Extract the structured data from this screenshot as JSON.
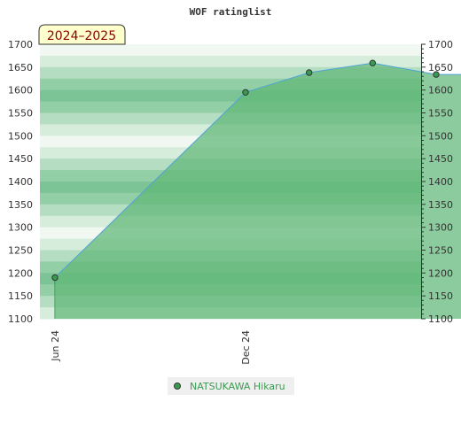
{
  "chart_data": {
    "type": "area",
    "title": "WOF ratinglist",
    "season_label": "2024–2025",
    "ylim": [
      1100,
      1700
    ],
    "y_ticks": [
      "1100",
      "1150",
      "1200",
      "1250",
      "1300",
      "1350",
      "1400",
      "1450",
      "1500",
      "1550",
      "1600",
      "1650",
      "1700"
    ],
    "x_ticks": [
      {
        "label": "Jun 24",
        "date": "2024-06"
      },
      {
        "label": "Dec 24",
        "date": "2024-12"
      }
    ],
    "series": [
      {
        "name": "NATSUKAWA Hikaru",
        "color": "#3a9a52",
        "line_color": "#4fa3d6",
        "fill_color": "#5fb777",
        "points": [
          {
            "date": "2024-06",
            "value": 1190
          },
          {
            "date": "2024-12",
            "value": 1595
          },
          {
            "date": "2025-02",
            "value": 1638
          },
          {
            "date": "2025-04",
            "value": 1659
          },
          {
            "date": "2025-06",
            "value": 1634
          },
          {
            "date": "2025-08",
            "value": 1634
          },
          {
            "date": "2025-10",
            "value": 1634
          }
        ]
      }
    ],
    "legend_position": "bottom-center",
    "grid": false,
    "band_colors": [
      "#7cc495",
      "#93cfa6",
      "#b5ddc2",
      "#d6eddc",
      "#f1f8f2"
    ]
  }
}
